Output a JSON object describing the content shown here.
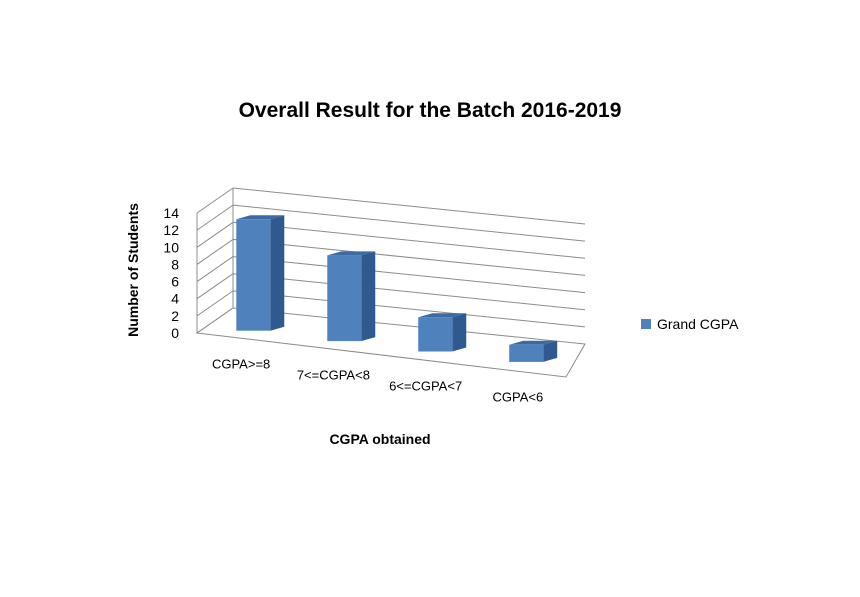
{
  "chart_data": {
    "type": "bar",
    "title": "Overall Result for the Batch 2016-2019",
    "xlabel": "CGPA obtained",
    "ylabel": "Number of Students",
    "categories": [
      "CGPA>=8",
      "7<=CGPA<8",
      "6<=CGPA<7",
      "CGPA<6"
    ],
    "series": [
      {
        "name": "Grand CGPA",
        "values": [
          13,
          10,
          4,
          2
        ]
      }
    ],
    "ylim": [
      0,
      14
    ],
    "yticks": [
      0,
      2,
      4,
      6,
      8,
      10,
      12,
      14
    ],
    "grid": true,
    "legend": "right",
    "style": "3d-column",
    "colors": {
      "bar_front": "#4f81bd",
      "bar_side": "#2f5a8f",
      "bar_top": "#3c6aa3"
    }
  }
}
